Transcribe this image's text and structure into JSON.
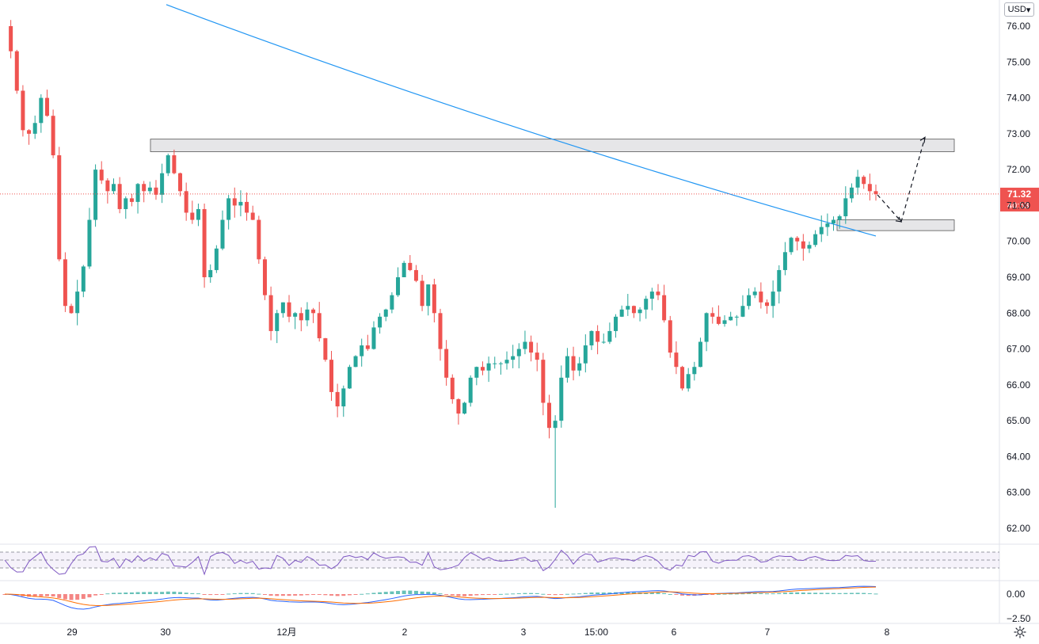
{
  "currency": "USD",
  "chart_data": {
    "type": "candlestick",
    "price_axis": {
      "min": 61.5,
      "max": 76.5,
      "ticks": [
        "76.00",
        "75.00",
        "74.00",
        "73.00",
        "72.00",
        "71.00",
        "70.00",
        "69.00",
        "68.00",
        "67.00",
        "66.00",
        "65.00",
        "64.00",
        "63.00",
        "62.00"
      ]
    },
    "current_price": {
      "value": 71.32,
      "label": "71.32",
      "countdown": "40:53",
      "color": "#ef5350"
    },
    "time_axis": {
      "labels": [
        "29",
        "30",
        "12月",
        "2",
        "3",
        "15:00",
        "6",
        "7",
        "8"
      ]
    },
    "colors": {
      "up": "#26a69a",
      "down": "#ef5350",
      "ma": "#2196f3",
      "rsi": "#7e57c2",
      "macd": "#2962ff",
      "signal": "#ff6d00"
    },
    "zones": [
      {
        "name": "resistance",
        "top": 72.85,
        "bottom": 72.5
      },
      {
        "name": "support",
        "top": 70.6,
        "bottom": 70.3
      }
    ],
    "projection": {
      "points": [
        [
          71.3,
          71.3
        ],
        [
          70.55,
          70.55
        ],
        [
          72.9,
          72.9
        ]
      ]
    },
    "ma_line": {
      "start": 76.6,
      "end": 70.15
    },
    "candles_close": [
      76.0,
      75.3,
      74.2,
      73.1,
      73.0,
      73.3,
      74.0,
      73.5,
      72.4,
      69.5,
      68.2,
      68.0,
      68.6,
      69.3,
      70.6,
      72.0,
      71.7,
      71.4,
      71.6,
      70.9,
      71.2,
      71.1,
      71.6,
      71.4,
      71.5,
      71.3,
      71.9,
      72.4,
      71.9,
      71.4,
      70.8,
      70.6,
      70.9,
      69.0,
      69.2,
      69.8,
      70.6,
      71.2,
      71.0,
      71.1,
      70.8,
      70.6,
      69.5,
      68.5,
      67.5,
      68.0,
      68.3,
      67.9,
      68.0,
      67.8,
      68.1,
      68.0,
      67.3,
      66.7,
      65.8,
      65.4,
      65.9,
      66.5,
      66.8,
      67.1,
      67.0,
      67.6,
      67.9,
      68.1,
      68.5,
      69.0,
      69.4,
      69.2,
      68.9,
      68.2,
      68.8,
      68.0,
      67.0,
      66.2,
      65.6,
      65.2,
      65.5,
      66.2,
      66.5,
      66.4,
      66.6,
      66.6,
      66.6,
      66.7,
      66.8,
      67.0,
      67.2,
      66.9,
      66.7,
      65.5,
      64.8,
      65.0,
      66.2,
      66.8,
      66.4,
      66.6,
      67.1,
      67.5,
      67.2,
      67.2,
      67.5,
      67.9,
      68.1,
      68.2,
      68.0,
      68.1,
      68.4,
      68.6,
      68.5,
      67.8,
      66.9,
      66.5,
      65.9,
      66.3,
      66.5,
      67.2,
      68.0,
      67.9,
      67.7,
      67.8,
      67.9,
      67.9,
      68.2,
      68.5,
      68.6,
      68.3,
      68.2,
      68.6,
      69.2,
      69.7,
      70.1,
      70.0,
      69.8,
      69.9,
      70.2,
      70.4,
      70.5,
      70.6,
      70.7,
      71.2,
      71.5,
      71.8,
      71.6,
      71.4,
      71.32
    ]
  }
}
